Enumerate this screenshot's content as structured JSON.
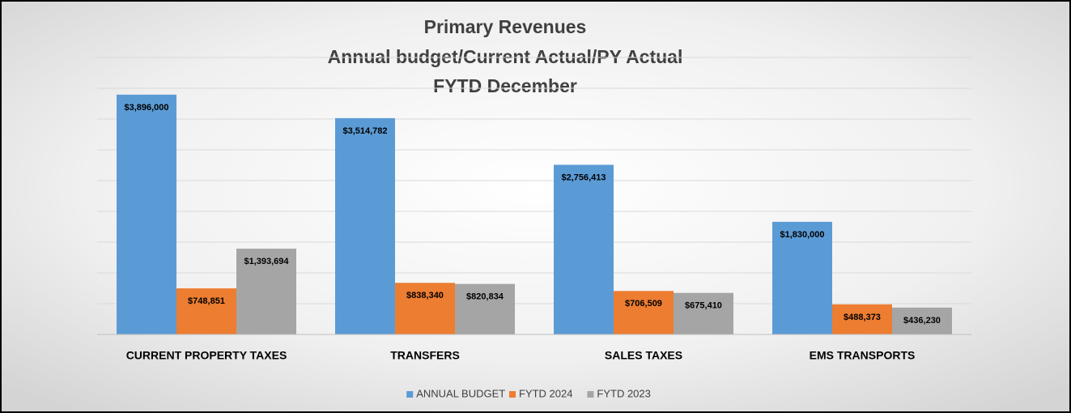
{
  "chart_data": {
    "type": "bar",
    "title": [
      "Primary Revenues",
      "Annual budget/Current Actual/PY Actual",
      "FYTD December"
    ],
    "categories": [
      "CURRENT PROPERTY TAXES",
      "TRANSFERS",
      "SALES TAXES",
      "EMS TRANSPORTS"
    ],
    "series": [
      {
        "name": "ANNUAL BUDGET",
        "color": "#5b9bd5",
        "values": [
          3896000,
          3514782,
          2756413,
          1830000
        ],
        "value_labels": [
          "$3,896,000",
          "$3,514,782",
          "$2,756,413",
          "$1,830,000"
        ]
      },
      {
        "name": "FYTD 2024",
        "color": "#ed7d31",
        "values": [
          748851,
          838340,
          706509,
          488373
        ],
        "value_labels": [
          "$748,851",
          "$838,340",
          "$706,509",
          "$488,373"
        ]
      },
      {
        "name": "FYTD 2023",
        "color": "#a5a5a5",
        "values": [
          1393694,
          820834,
          675410,
          436230
        ],
        "value_labels": [
          "$1,393,694",
          "$820,834",
          "$675,410",
          "$436,230"
        ]
      }
    ],
    "ylim": [
      0,
      4500000
    ],
    "yticks": [
      0,
      500000,
      1000000,
      1500000,
      2000000,
      2500000,
      3000000,
      3500000,
      4000000,
      4500000
    ],
    "grid": true,
    "legend": "bottom"
  }
}
